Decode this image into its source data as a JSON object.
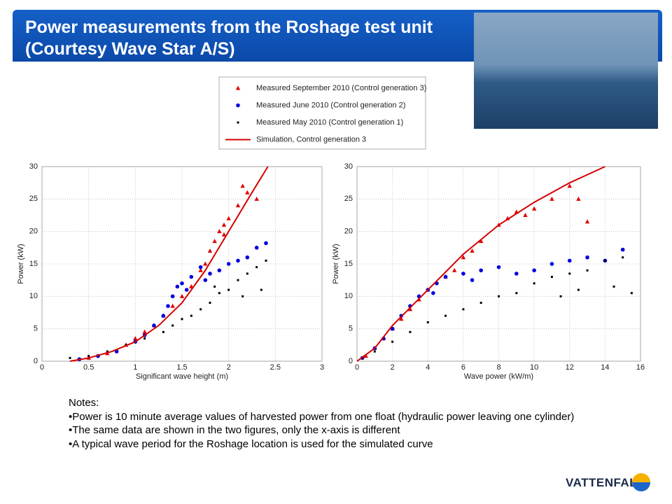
{
  "header": {
    "title_lines": [
      "Power measurements from the Roshage test unit",
      "(Courtesy Wave Star A/S)"
    ]
  },
  "notes": {
    "heading": "Notes:",
    "items": [
      "Power is 10 minute average values of harvested power from one float (hydraulic power leaving one cylinder)",
      "The same data are shown in the two figures, only the x-axis is different",
      "A typical wave period for the Roshage location is used for the simulated curve"
    ]
  },
  "footer": {
    "logo": "VATTENFALL"
  },
  "chart_data": [
    {
      "type": "scatter",
      "xlabel": "Significant wave height (m)",
      "ylabel": "Power (kW)",
      "xlim": [
        0,
        3
      ],
      "ylim": [
        0,
        30
      ],
      "xticks": [
        0,
        0.5,
        1,
        1.5,
        2,
        2.5,
        3
      ],
      "yticks": [
        0,
        5,
        10,
        15,
        20,
        25,
        30
      ],
      "grid": true,
      "series": [
        {
          "name": "Measured September 2010 (Control generation 3)",
          "color": "#e00000",
          "marker": "triangle",
          "x": [
            0.5,
            0.7,
            0.9,
            1.0,
            1.1,
            1.2,
            1.3,
            1.4,
            1.5,
            1.6,
            1.7,
            1.75,
            1.8,
            1.85,
            1.9,
            1.95,
            2.0,
            2.1,
            2.2,
            2.3,
            2.15,
            1.95
          ],
          "values": [
            0.5,
            1.2,
            2.5,
            3.5,
            4.5,
            5.5,
            7,
            8.5,
            10,
            11.5,
            14,
            15,
            17,
            18.5,
            20,
            21,
            22,
            24,
            26,
            25,
            27,
            19.5
          ]
        },
        {
          "name": "Measured June 2010 (Control generation 2)",
          "color": "#0000e0",
          "marker": "circle",
          "x": [
            0.4,
            0.6,
            0.8,
            1.0,
            1.1,
            1.2,
            1.3,
            1.35,
            1.4,
            1.45,
            1.5,
            1.6,
            1.7,
            1.8,
            1.9,
            2.0,
            2.1,
            2.2,
            2.3,
            2.4,
            1.55,
            1.75
          ],
          "values": [
            0.3,
            0.8,
            1.5,
            3,
            4,
            5.5,
            7,
            8.5,
            10,
            11.5,
            12,
            13,
            14.5,
            13.5,
            14,
            15,
            15.5,
            16,
            17.5,
            18.2,
            11,
            12.5
          ]
        },
        {
          "name": "Measured May 2010 (Control generation 1)",
          "color": "#000000",
          "marker": "star",
          "x": [
            0.3,
            0.5,
            0.7,
            0.9,
            1.1,
            1.3,
            1.4,
            1.5,
            1.6,
            1.7,
            1.8,
            1.9,
            2.0,
            2.1,
            2.2,
            2.3,
            2.4,
            2.35,
            2.15,
            1.85
          ],
          "values": [
            0.5,
            0.8,
            1.5,
            2.5,
            3.5,
            4.5,
            5.5,
            6.5,
            7,
            8,
            9,
            10.5,
            11,
            12.5,
            13.5,
            14.5,
            15.5,
            11,
            10,
            11.5
          ]
        },
        {
          "name": "Simulation, Control generation 3",
          "color": "#d40000",
          "marker": "line",
          "x": [
            0.3,
            0.5,
            0.75,
            1,
            1.25,
            1.5,
            1.75,
            2,
            2.25,
            2.42
          ],
          "values": [
            0,
            0.5,
            1.5,
            3,
            5.5,
            9,
            14,
            20,
            26,
            30
          ]
        }
      ]
    },
    {
      "type": "scatter",
      "xlabel": "Wave power (kW/m)",
      "ylabel": "Power (kW)",
      "xlim": [
        0,
        16
      ],
      "ylim": [
        0,
        30
      ],
      "xticks": [
        0,
        2,
        4,
        6,
        8,
        10,
        12,
        14,
        16
      ],
      "yticks": [
        0,
        5,
        10,
        15,
        20,
        25,
        30
      ],
      "grid": true,
      "series": [
        {
          "color": "#e00000",
          "marker": "triangle",
          "x": [
            0.5,
            1,
            1.5,
            2,
            2.5,
            3,
            3.5,
            4,
            5,
            5.5,
            6,
            6.5,
            7,
            8,
            8.5,
            9,
            9.5,
            10,
            11,
            12,
            12.5,
            13
          ],
          "values": [
            0.8,
            2,
            3.5,
            5,
            6.5,
            8,
            9.5,
            11,
            13,
            14,
            16,
            17,
            18.5,
            21,
            22,
            23,
            22.5,
            23.5,
            25,
            27,
            25,
            21.5
          ]
        },
        {
          "color": "#0000e0",
          "marker": "circle",
          "x": [
            0.3,
            1,
            1.5,
            2,
            2.5,
            3,
            3.5,
            4,
            4.5,
            5,
            6,
            7,
            8,
            9,
            10,
            11,
            12,
            13,
            14,
            15,
            4.3,
            6.5
          ],
          "values": [
            0.5,
            2,
            3.5,
            5,
            7,
            8.5,
            10,
            11,
            12,
            13,
            13.5,
            14,
            14.5,
            13.5,
            14,
            15,
            15.5,
            16,
            15.5,
            17.2,
            10.5,
            12.5
          ]
        },
        {
          "color": "#000000",
          "marker": "star",
          "x": [
            0.3,
            1,
            2,
            3,
            4,
            5,
            6,
            7,
            8,
            9,
            10,
            11,
            12,
            13,
            14,
            15,
            15.5,
            12.5,
            11.5,
            14.5
          ],
          "values": [
            0.5,
            1.5,
            3,
            4.5,
            6,
            7,
            8,
            9,
            10,
            10.5,
            12,
            13,
            13.5,
            14,
            15.5,
            16,
            10.5,
            11,
            10,
            11.5
          ]
        },
        {
          "color": "#d40000",
          "marker": "line",
          "x": [
            0,
            1,
            2,
            4,
            6,
            8,
            10,
            12,
            14
          ],
          "values": [
            0,
            2,
            5.5,
            11,
            16.5,
            21,
            24.5,
            27.5,
            30
          ]
        }
      ]
    }
  ]
}
